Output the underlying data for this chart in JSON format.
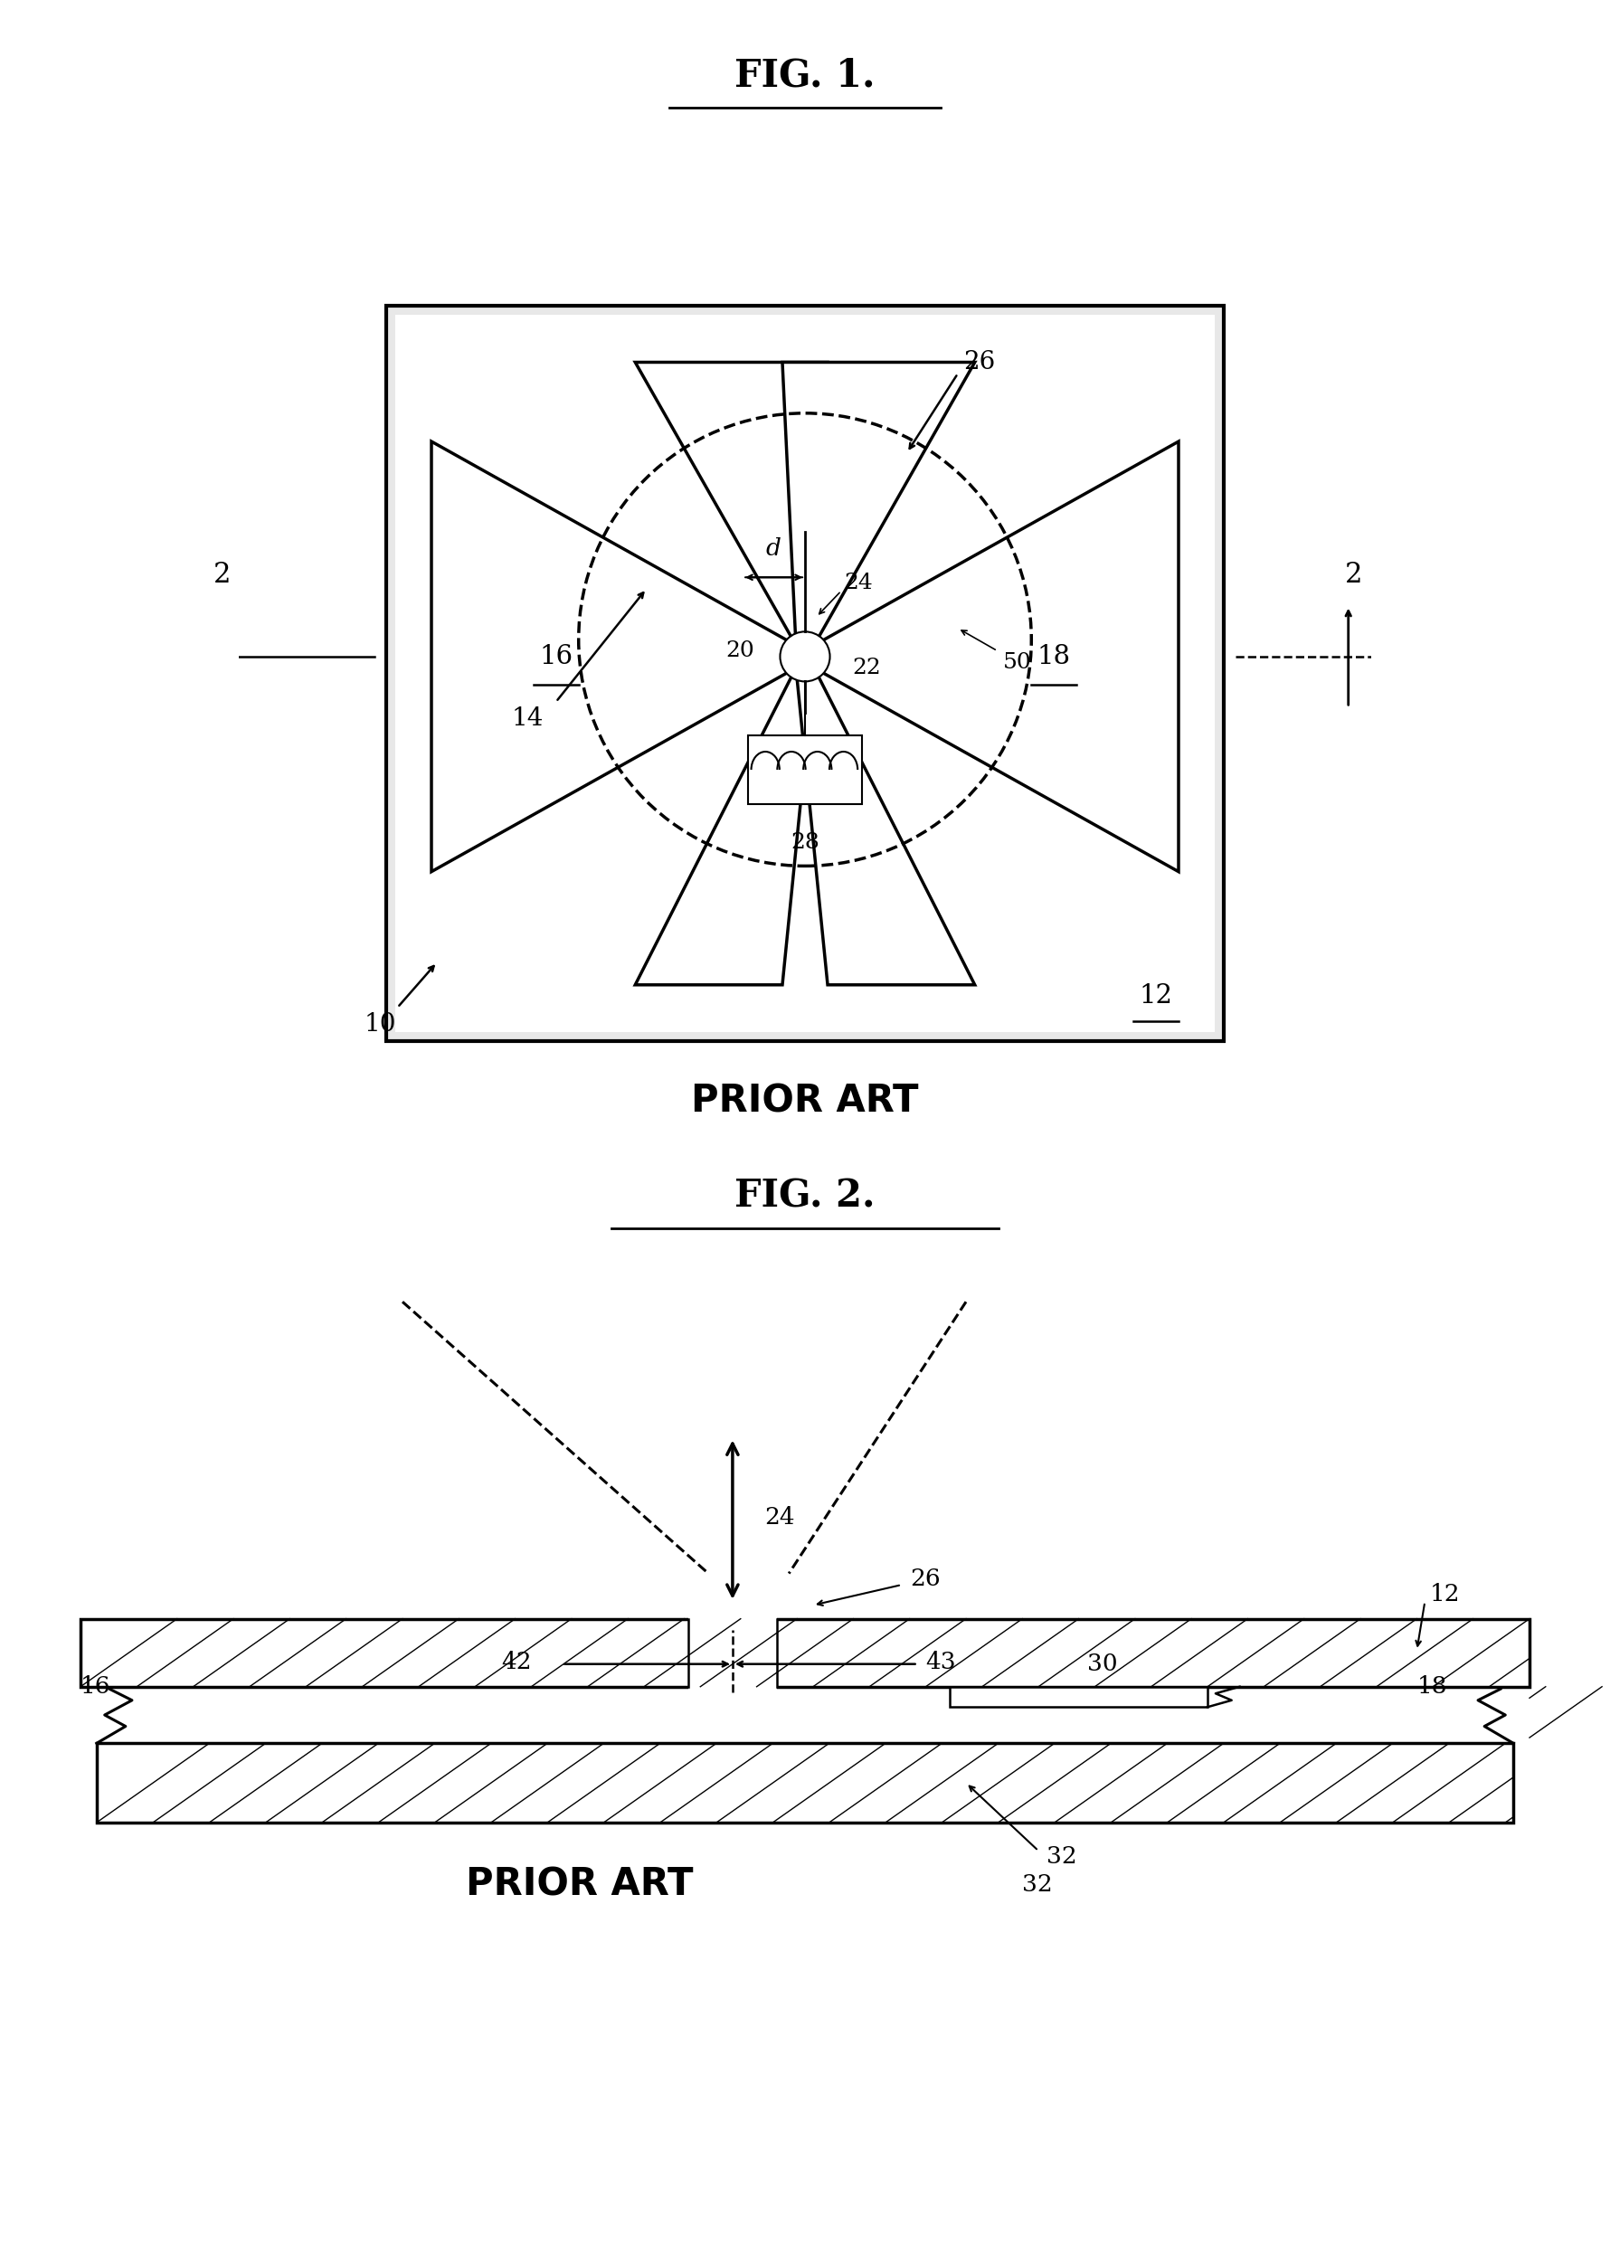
{
  "fig1_title": "FIG. 1.",
  "fig2_title": "FIG. 2.",
  "prior_art": "PRIOR ART",
  "background_color": "#ffffff",
  "line_color": "#000000"
}
